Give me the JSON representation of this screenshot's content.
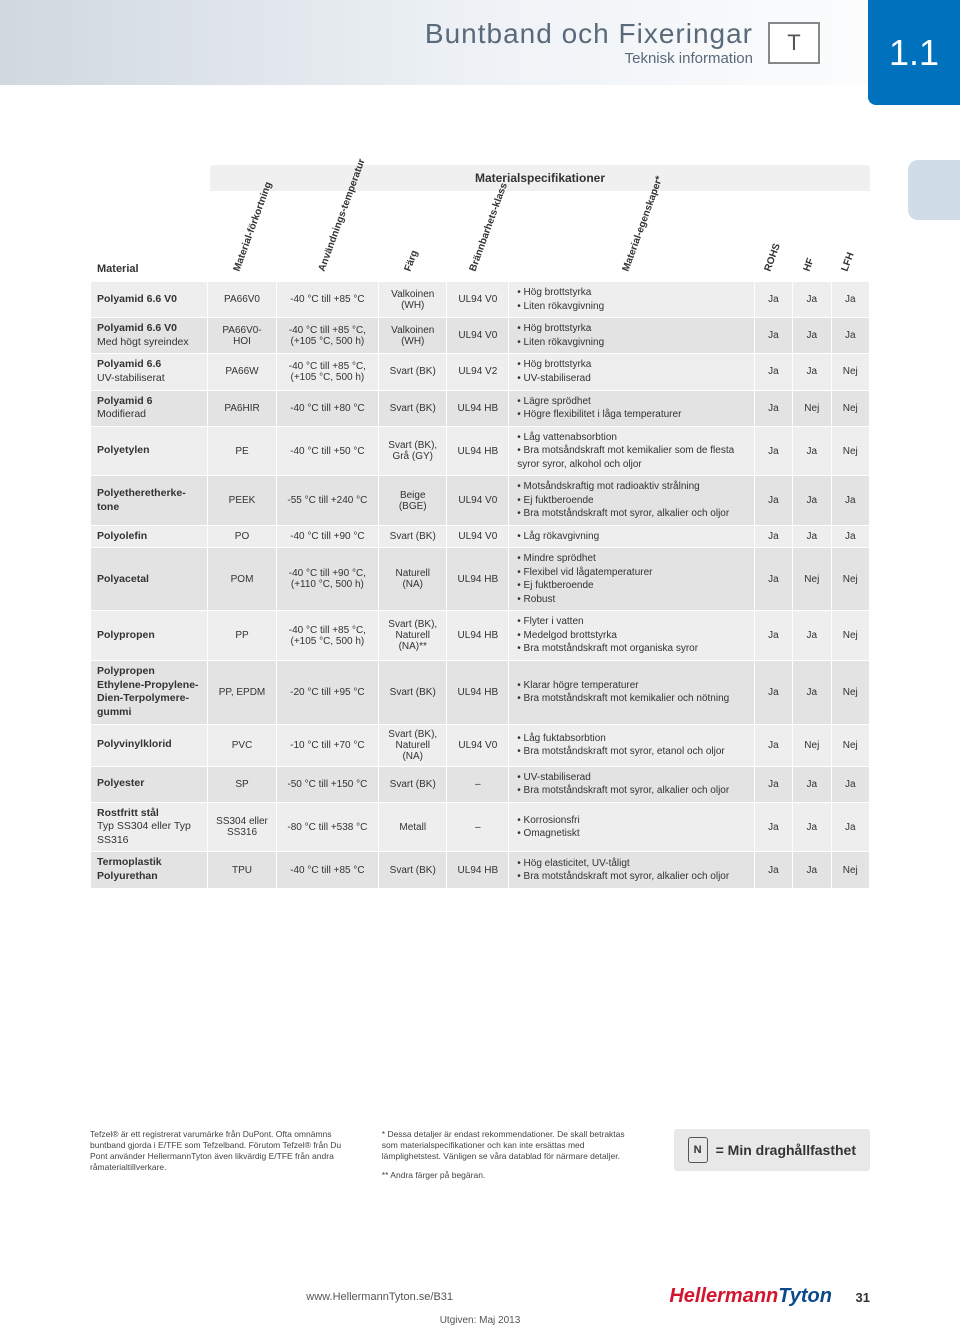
{
  "header": {
    "title": "Buntband och Fixeringar",
    "subtitle": "Teknisk information",
    "section_number": "1.1"
  },
  "table": {
    "title": "Materialspecifikationer",
    "columns": {
      "material": "Material",
      "abbrev": "Material-förkortning",
      "temp": "Användnings-temperatur",
      "color": "Färg",
      "flame": "Brännbarhets-klass",
      "props": "Material-egenskaper*",
      "rohs": "ROHS",
      "hf": "HF",
      "lfh": "LFH"
    },
    "col_widths": [
      "110",
      "64",
      "96",
      "64",
      "58",
      "230",
      "36",
      "36",
      "36"
    ],
    "rows": [
      {
        "material": "Polyamid 6.6 V0",
        "sub": "",
        "abbrev": "PA66V0",
        "temp": "-40 °C till +85 °C",
        "color": "Valkoinen (WH)",
        "flame": "UL94 V0",
        "props": [
          "Hög brottstyrka",
          "Liten rökavgivning"
        ],
        "rohs": "Ja",
        "hf": "Ja",
        "lfh": "Ja"
      },
      {
        "material": "Polyamid 6.6 V0",
        "sub": "Med högt syreindex",
        "abbrev": "PA66V0-HOI",
        "temp": "-40 °C till +85 °C, (+105 °C, 500 h)",
        "color": "Valkoinen (WH)",
        "flame": "UL94 V0",
        "props": [
          "Hög brottstyrka",
          "Liten rökavgivning"
        ],
        "rohs": "Ja",
        "hf": "Ja",
        "lfh": "Ja"
      },
      {
        "material": "Polyamid 6.6",
        "sub": "UV-stabiliserat",
        "abbrev": "PA66W",
        "temp": "-40 °C till +85 °C, (+105 °C, 500 h)",
        "color": "Svart (BK)",
        "flame": "UL94 V2",
        "props": [
          "Hög brottstyrka",
          "UV-stabiliserad"
        ],
        "rohs": "Ja",
        "hf": "Ja",
        "lfh": "Nej"
      },
      {
        "material": "Polyamid 6",
        "sub": "Modifierad",
        "abbrev": "PA6HIR",
        "temp": "-40 °C till +80 °C",
        "color": "Svart (BK)",
        "flame": "UL94 HB",
        "props": [
          "Lägre sprödhet",
          "Högre flexibilitet i låga temperaturer"
        ],
        "rohs": "Ja",
        "hf": "Nej",
        "lfh": "Nej"
      },
      {
        "material": "Polyetylen",
        "sub": "",
        "abbrev": "PE",
        "temp": "-40 °C till +50 °C",
        "color": "Svart (BK), Grå (GY)",
        "flame": "UL94 HB",
        "props": [
          "Låg vattenabsorbtion",
          "Bra motsåndskraft mot kemikalier som de flesta syror syror, alkohol och oljor"
        ],
        "rohs": "Ja",
        "hf": "Ja",
        "lfh": "Nej"
      },
      {
        "material": "Polyetheretherke-tone",
        "sub": "",
        "abbrev": "PEEK",
        "temp": "-55 °C till +240 °C",
        "color": "Beige (BGE)",
        "flame": "UL94 V0",
        "props": [
          "Motsåndskraftig mot radioaktiv strålning",
          "Ej fuktberoende",
          "Bra motståndskraft mot syror, alkalier och oljor"
        ],
        "rohs": "Ja",
        "hf": "Ja",
        "lfh": "Ja"
      },
      {
        "material": "Polyolefin",
        "sub": "",
        "abbrev": "PO",
        "temp": "-40 °C till +90 °C",
        "color": "Svart (BK)",
        "flame": "UL94 V0",
        "props": [
          "Låg rökavgivning"
        ],
        "rohs": "Ja",
        "hf": "Ja",
        "lfh": "Ja"
      },
      {
        "material": "Polyacetal",
        "sub": "",
        "abbrev": "POM",
        "temp": "-40 °C till +90 °C, (+110 °C, 500 h)",
        "color": "Naturell (NA)",
        "flame": "UL94 HB",
        "props": [
          "Mindre sprödhet",
          "Flexibel vid lågatemperaturer",
          "Ej fuktberoende",
          "Robust"
        ],
        "rohs": "Ja",
        "hf": "Nej",
        "lfh": "Nej"
      },
      {
        "material": "Polypropen",
        "sub": "",
        "abbrev": "PP",
        "temp": "-40 °C till +85 °C, (+105 °C, 500 h)",
        "color": "Svart (BK), Naturell (NA)**",
        "flame": "UL94 HB",
        "props": [
          "Flyter i vatten",
          "Medelgod brottstyrka",
          "Bra motståndskraft mot organiska syror"
        ],
        "rohs": "Ja",
        "hf": "Ja",
        "lfh": "Nej"
      },
      {
        "material": "Polypropen Ethylene-Propylene-Dien-Terpolymere-gummi",
        "sub": "",
        "abbrev": "PP, EPDM",
        "temp": "-20 °C till +95 °C",
        "color": "Svart (BK)",
        "flame": "UL94 HB",
        "props": [
          "Klarar högre temperaturer",
          "Bra motståndskraft mot kemikalier och nötning"
        ],
        "rohs": "Ja",
        "hf": "Ja",
        "lfh": "Nej"
      },
      {
        "material": "Polyvinylklorid",
        "sub": "",
        "abbrev": "PVC",
        "temp": "-10 °C till +70 °C",
        "color": "Svart (BK), Naturell (NA)",
        "flame": "UL94 V0",
        "props": [
          "Låg fuktabsorbtion",
          "Bra motståndskraft mot syror, etanol och oljor"
        ],
        "rohs": "Ja",
        "hf": "Nej",
        "lfh": "Nej"
      },
      {
        "material": "Polyester",
        "sub": "",
        "abbrev": "SP",
        "temp": "-50 °C till +150 °C",
        "color": "Svart (BK)",
        "flame": "–",
        "props": [
          "UV-stabiliserad",
          "Bra motståndskraft mot syror, alkalier och oljor"
        ],
        "rohs": "Ja",
        "hf": "Ja",
        "lfh": "Ja"
      },
      {
        "material": "Rostfritt stål",
        "sub": "Typ SS304 eller Typ SS316",
        "abbrev": "SS304 eller SS316",
        "temp": "-80 °C till +538 °C",
        "color": "Metall",
        "flame": "–",
        "props": [
          "Korrosionsfri",
          "Omagnetiskt"
        ],
        "rohs": "Ja",
        "hf": "Ja",
        "lfh": "Ja"
      },
      {
        "material": "Termoplastik Polyurethan",
        "sub": "",
        "abbrev": "TPU",
        "temp": "-40 °C till +85 °C",
        "color": "Svart (BK)",
        "flame": "UL94 HB",
        "props": [
          "Hög elasticitet, UV-tåligt",
          "Bra motståndskraft mot syror, alkalier och oljor"
        ],
        "rohs": "Ja",
        "hf": "Ja",
        "lfh": "Nej"
      }
    ]
  },
  "footnotes": {
    "left": "Tefzel® är ett registrerat varumärke från DuPont. Ofta omnämns buntband gjorda i E/TFE som Tefzelband. Förutom Tefzel® från Du Pont använder HellermannTyton även likvärdig E/TFE från andra råmaterialtillverkare.",
    "star": "* Dessa detaljer är endast rekommendationer. De skall betraktas som materialspecifikationer och kan inte ersättas med lämplighetstest. Vänligen se våra datablad för närmare detaljer.",
    "dstar": "** Andra färger på begäran.",
    "min_label": "= Min draghållfasthet",
    "min_icon": "N"
  },
  "footer": {
    "url": "www.HellermannTyton.se/B31",
    "issued": "Utgiven: Maj 2013",
    "brand1": "Hellermann",
    "brand2": "Tyton",
    "page": "31"
  },
  "colors": {
    "accent": "#0071bc",
    "row_odd": "#eeeeee",
    "row_even": "#e3e3e3",
    "brand_red": "#d3162f",
    "brand_blue": "#0a4a8a"
  }
}
